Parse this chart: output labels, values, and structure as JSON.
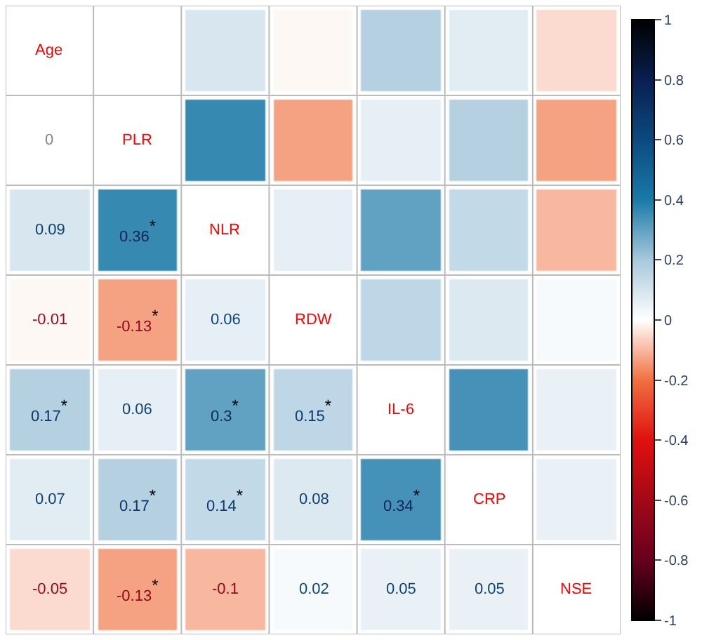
{
  "chart_data": {
    "type": "heatmap",
    "categories": [
      null,
      null,
      null,
      null,
      null,
      null,
      null
    ],
    "y_categories": [
      "Age",
      "PLR",
      "NLR",
      "RDW",
      "IL-6",
      "CRP",
      "NSE"
    ],
    "cells": [
      [
        null,
        0,
        0.09,
        -0.01,
        0.17,
        0.07,
        -0.05
      ],
      [
        0,
        null,
        0.36,
        -0.13,
        0.06,
        0.17,
        -0.13
      ],
      [
        0.09,
        0.36,
        null,
        0.06,
        0.3,
        0.14,
        -0.1
      ],
      [
        -0.01,
        -0.13,
        0.06,
        null,
        0.15,
        0.08,
        0.02
      ],
      [
        0.17,
        0.06,
        0.3,
        0.15,
        null,
        0.34,
        0.05
      ],
      [
        0.07,
        0.17,
        0.14,
        0.08,
        0.34,
        null,
        0.05
      ],
      [
        -0.05,
        -0.13,
        -0.1,
        0.02,
        0.05,
        0.05,
        null
      ]
    ],
    "cell_labels": [
      [
        null,
        null,
        null,
        null,
        null,
        null,
        null
      ],
      [
        "0",
        null,
        null,
        null,
        null,
        null,
        null
      ],
      [
        "0.09",
        "0.36$^{*}$",
        null,
        null,
        null,
        null,
        null
      ],
      [
        "-0.01",
        "-0.13$^{*}$",
        "0.06",
        null,
        null,
        null,
        null
      ],
      [
        "0.17$^{*}$",
        "0.06",
        "0.3$^{*}$",
        "0.15$^{*}$",
        null,
        null,
        null
      ],
      [
        "0.07",
        "0.17$^{*}$",
        "0.14$^{*}$",
        "0.08",
        "0.34$^{*}$",
        null,
        null
      ],
      [
        "-0.05",
        "-0.13$^{*}$",
        "-0.1",
        "0.02",
        "0.05",
        "0.05",
        null
      ]
    ],
    "clim": [
      -1,
      1
    ],
    "cticks": [
      -1,
      -0.8,
      -0.6,
      -0.4,
      -0.2,
      0,
      0.2,
      0.4,
      0.6,
      0.8,
      1
    ],
    "tick_labels": false
  }
}
